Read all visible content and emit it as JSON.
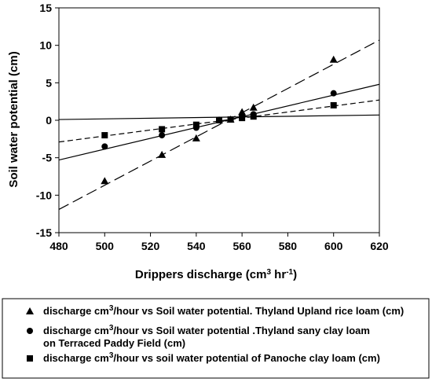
{
  "chart_data": {
    "type": "scatter",
    "xlabel": {
      "main": "Drippers discharge (cm",
      "sup": "3",
      "mid": " hr",
      "sup2": "-1",
      "end": ")"
    },
    "ylabel": "Soil water potential (cm)",
    "xlim": [
      480,
      620
    ],
    "ylim": [
      -15,
      15
    ],
    "xticks": [
      480,
      500,
      520,
      540,
      560,
      580,
      600,
      620
    ],
    "yticks": [
      -15,
      -10,
      -5,
      0,
      5,
      10,
      15
    ],
    "grid": false,
    "legend_position": "bottom",
    "series": [
      {
        "marker": "triangle",
        "line": "long-dash",
        "legend": {
          "pre": "discharge cm",
          "sup": "3",
          "post": "/hour vs Soil water potential. Thyland Upland rice loam (cm)",
          "line2": ""
        },
        "points": [
          {
            "x": 500,
            "y": -8.1
          },
          {
            "x": 525,
            "y": -4.6
          },
          {
            "x": 540,
            "y": -2.4
          },
          {
            "x": 550,
            "y": 0.0
          },
          {
            "x": 555,
            "y": 0.1
          },
          {
            "x": 560,
            "y": 1.1
          },
          {
            "x": 565,
            "y": 1.7
          },
          {
            "x": 600,
            "y": 8.1
          }
        ],
        "fit": [
          [
            480,
            -11.9
          ],
          [
            620,
            10.7
          ]
        ]
      },
      {
        "marker": "circle",
        "line": "solid",
        "legend": {
          "pre": "discharge cm",
          "sup": "3",
          "post": "/hour vs Soil water potential .Thyland sany clay loam",
          "line2": "on Terraced Paddy Field (cm)"
        },
        "points": [
          {
            "x": 500,
            "y": -3.5
          },
          {
            "x": 525,
            "y": -2.0
          },
          {
            "x": 540,
            "y": -1.0
          },
          {
            "x": 550,
            "y": 0.0
          },
          {
            "x": 555,
            "y": 0.1
          },
          {
            "x": 560,
            "y": 0.5
          },
          {
            "x": 565,
            "y": 0.8
          },
          {
            "x": 600,
            "y": 3.6
          }
        ],
        "fit": [
          [
            480,
            -5.3
          ],
          [
            620,
            4.8
          ]
        ]
      },
      {
        "marker": "square",
        "line": "short-dash",
        "legend": {
          "pre": "discharge cm",
          "sup": "3",
          "post": "/hour vs soil water potential of Panoche clay loam (cm)",
          "line2": ""
        },
        "points": [
          {
            "x": 500,
            "y": -2.0
          },
          {
            "x": 525,
            "y": -1.2
          },
          {
            "x": 540,
            "y": -0.6
          },
          {
            "x": 550,
            "y": 0.0
          },
          {
            "x": 555,
            "y": 0.1
          },
          {
            "x": 560,
            "y": 0.3
          },
          {
            "x": 565,
            "y": 0.5
          },
          {
            "x": 600,
            "y": 2.0
          }
        ],
        "fit": [
          [
            480,
            -2.9
          ],
          [
            620,
            2.7
          ]
        ]
      }
    ],
    "extra_line": {
      "line": "solid",
      "fit": [
        [
          480,
          0.1
        ],
        [
          620,
          0.7
        ]
      ]
    }
  }
}
